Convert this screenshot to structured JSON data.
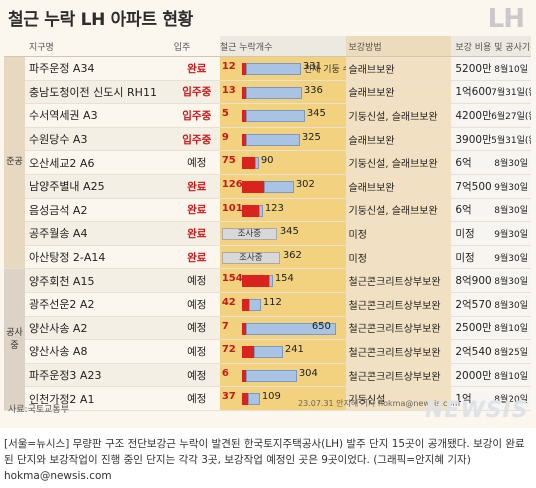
{
  "title": "철근 누락 LH 아파트 현황",
  "logo": "LH",
  "headers": {
    "name": "지구명",
    "status": "입주",
    "bar": "철근 누락개수",
    "method": "보강방법",
    "cost": "보강 비용 및 공사기간"
  },
  "groups": {
    "done": "준공",
    "plan": "공사 중"
  },
  "inline_note": "전체 기둥 수",
  "rows": [
    {
      "name": "파주운정 A34",
      "status": "완료",
      "status_kind": "done",
      "missing": "12",
      "total": "331",
      "method": "슬래브보완",
      "cost": "5200만(원)",
      "date": "8월10일",
      "show_note": true
    },
    {
      "name": "충남도청이전 신도시 RH11",
      "status": "입주중",
      "status_kind": "ing",
      "missing": "13",
      "total": "336",
      "method": "슬래브보완",
      "cost": "1억6000만",
      "date": "7월31일(완료)"
    },
    {
      "name": "수서역세권 A3",
      "status": "입주중",
      "status_kind": "ing",
      "missing": "5",
      "total": "345",
      "method": "기둥신설, 슬래브보완",
      "cost": "4200만",
      "date": "6월27일(완료)"
    },
    {
      "name": "수원당수 A3",
      "status": "입주중",
      "status_kind": "ing",
      "missing": "9",
      "total": "325",
      "method": "슬래브보완",
      "cost": "3900만",
      "date": "5월31일(완료)"
    },
    {
      "name": "오산세교2 A6",
      "status": "예정",
      "status_kind": "plan",
      "missing": "75",
      "total": "90",
      "method": "기둥신설, 슬래브보완",
      "cost": "6억",
      "date": "8월30일"
    },
    {
      "name": "남양주별내 A25",
      "status": "완료",
      "status_kind": "done",
      "missing": "126",
      "total": "302",
      "method": "슬래브보완",
      "cost": "7억5000만",
      "date": "9월30일"
    },
    {
      "name": "음성금석 A2",
      "status": "완료",
      "status_kind": "done",
      "missing": "101",
      "total": "123",
      "method": "기둥신설, 슬래브보완",
      "cost": "6억",
      "date": "8월30일"
    },
    {
      "name": "공주월송 A4",
      "status": "완료",
      "status_kind": "done",
      "survey": "조사중",
      "total": "345",
      "method": "미정",
      "cost": "미정",
      "date": "9월30일"
    },
    {
      "name": "아산탕정 2-A14",
      "status": "완료",
      "status_kind": "done",
      "survey": "조사중",
      "total": "362",
      "method": "미정",
      "cost": "미정",
      "date": "9월30일"
    },
    {
      "name": "양주회천 A15",
      "status": "예정",
      "status_kind": "plan",
      "missing": "154",
      "total": "154",
      "method": "철근콘크리트상부보완",
      "cost": "8억900만",
      "date": "8월30일"
    },
    {
      "name": "광주선운2 A2",
      "status": "예정",
      "status_kind": "plan",
      "missing": "42",
      "total": "112",
      "method": "철근콘크리트상부보완",
      "cost": "2억5700만",
      "date": "8월30일"
    },
    {
      "name": "양산사송 A2",
      "status": "예정",
      "status_kind": "plan",
      "missing": "7",
      "total": "650",
      "method": "철근콘크리트상부보완",
      "cost": "2500만",
      "date": "8월10일"
    },
    {
      "name": "양산사송 A8",
      "status": "예정",
      "status_kind": "plan",
      "missing": "72",
      "total": "241",
      "method": "철근콘크리트상부보완",
      "cost": "2억5400만",
      "date": "8월25일"
    },
    {
      "name": "파주운정3 A23",
      "status": "예정",
      "status_kind": "plan",
      "missing": "6",
      "total": "304",
      "method": "철근콘크리트상부보완",
      "cost": "2000만",
      "date": "8월10일"
    },
    {
      "name": "인천가정2 A1",
      "status": "예정",
      "status_kind": "plan",
      "missing": "37",
      "total": "109",
      "method": "기둥신설",
      "cost": "1억",
      "date": "8월20일"
    }
  ],
  "source": "사료:국토교통부",
  "credit": "23.07.31 안지혜 기자 hokma@newsis.com",
  "watermark": "NEWSIS",
  "caption": "[서울=뉴시스] 무량판 구조 전단보강근 누락이 발견된 한국토지주택공사(LH) 발주 단지 15곳이 공개됐다. 보강이 완료된 단지와 보강작업이 진행 중인 단지는 각각 3곳, 보강작업 예정인 곳은 9곳이었다. (그래픽=안지혜 기자) hokma@newsis.com"
}
